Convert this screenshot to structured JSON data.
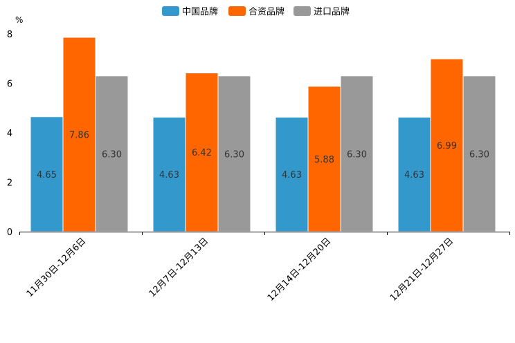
{
  "chart_data": {
    "type": "bar",
    "unit": "%",
    "categories": [
      "11月30日-12月6日",
      "12月7日-12月13日",
      "12月14日-12月20日",
      "12月21日-12月27日"
    ],
    "series": [
      {
        "name": "中国品牌",
        "color": "#3399cc",
        "values": [
          4.65,
          4.63,
          4.63,
          4.63
        ],
        "labels": [
          "4.65",
          "4.63",
          "4.63",
          "4.63"
        ]
      },
      {
        "name": "合资品牌",
        "color": "#ff6600",
        "values": [
          7.86,
          6.42,
          5.88,
          6.99
        ],
        "labels": [
          "7.86",
          "6.42",
          "5.88",
          "6.99"
        ]
      },
      {
        "name": "进口品牌",
        "color": "#999999",
        "values": [
          6.3,
          6.3,
          6.3,
          6.3
        ],
        "labels": [
          "6.30",
          "6.30",
          "6.30",
          "6.30"
        ]
      }
    ],
    "yticks": [
      "0",
      "2",
      "4",
      "6",
      "8"
    ],
    "ylim": [
      0,
      8
    ],
    "legend": "top-center",
    "grid": false
  }
}
